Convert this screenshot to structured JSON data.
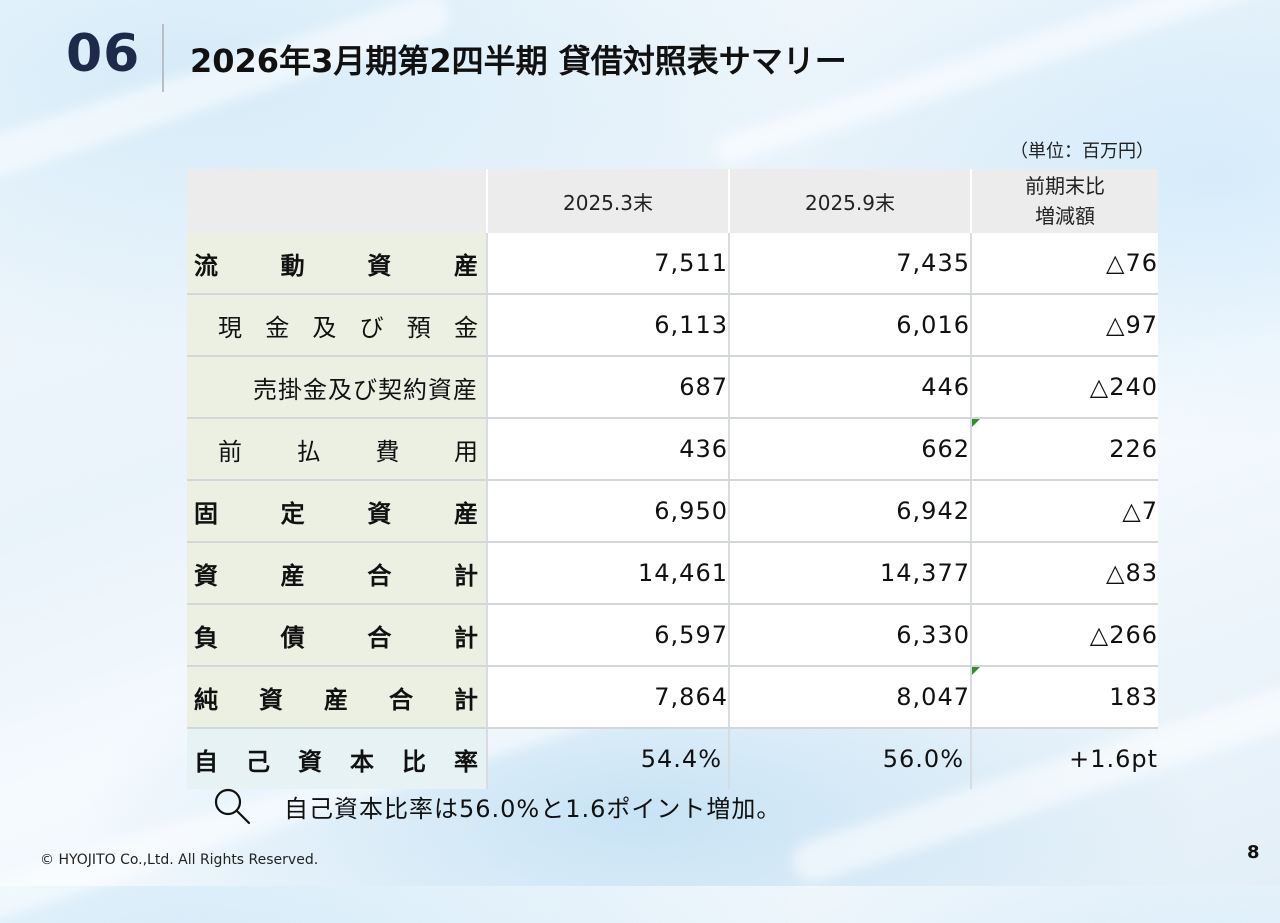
{
  "header": {
    "section_number": "06",
    "title": "2026年3月期第2四半期 貸借対照表サマリー"
  },
  "unit_note": "（単位：百万円）",
  "table": {
    "columns": [
      "2025.3末",
      "2025.9末",
      "前期末比",
      "増減額"
    ],
    "rows": [
      {
        "chars": [
          "流",
          "動",
          "資",
          "産"
        ],
        "v1": "7,511",
        "v2": "7,435",
        "diff": "△76"
      },
      {
        "chars": [
          "現",
          "金",
          "及",
          "び",
          "預",
          "金"
        ],
        "v1": "6,113",
        "v2": "6,016",
        "diff": "△97"
      },
      {
        "label": "売掛金及び契約資産",
        "v1": "687",
        "v2": "446",
        "diff": "△240"
      },
      {
        "chars": [
          "前",
          "払",
          "費",
          "用"
        ],
        "v1": "436",
        "v2": "662",
        "diff": "226"
      },
      {
        "chars": [
          "固",
          "定",
          "資",
          "産"
        ],
        "v1": "6,950",
        "v2": "6,942",
        "diff": "△7"
      },
      {
        "chars": [
          "資",
          "産",
          "合",
          "計"
        ],
        "v1": "14,461",
        "v2": "14,377",
        "diff": "△83"
      },
      {
        "chars": [
          "負",
          "債",
          "合",
          "計"
        ],
        "v1": "6,597",
        "v2": "6,330",
        "diff": "△266"
      },
      {
        "chars": [
          "純",
          "資",
          "産",
          "合",
          "計"
        ],
        "v1": "7,864",
        "v2": "8,047",
        "diff": "183"
      },
      {
        "chars": [
          "自",
          "己",
          "資",
          "本",
          "比",
          "率"
        ],
        "v1": "54.4%",
        "v2": "56.0%",
        "diff": "+1.6pt"
      }
    ]
  },
  "note": "自己資本比率は56.0%と1.6ポイント増加。",
  "footer": {
    "copyright": "© HYOJITO Co.,Ltd. All Rights Reserved.",
    "page_number": "8"
  }
}
